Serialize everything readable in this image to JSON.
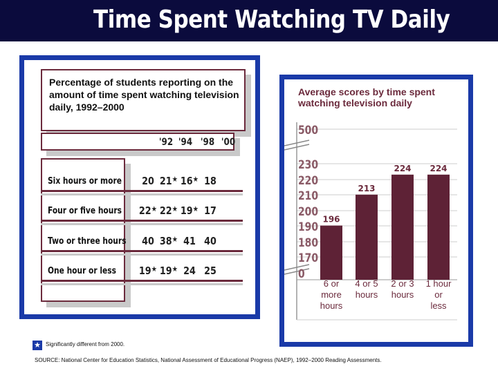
{
  "page": {
    "title": "Time Spent Watching TV Daily"
  },
  "table": {
    "caption": "Percentage of students reporting on the amount of time spent watching television daily, 1992–2000",
    "years": [
      "'92",
      "'94",
      "'98",
      "'00"
    ],
    "rows": [
      {
        "label": "Six hours or more",
        "values": [
          "20",
          "21",
          "16",
          "18"
        ],
        "significant": [
          false,
          true,
          true,
          false
        ]
      },
      {
        "label": "Four or five hours",
        "values": [
          "22",
          "22",
          "19",
          "17"
        ],
        "significant": [
          true,
          true,
          true,
          false
        ]
      },
      {
        "label": "Two or three hours",
        "values": [
          "40",
          "38",
          "41",
          "40"
        ],
        "significant": [
          false,
          true,
          false,
          false
        ]
      },
      {
        "label": "One hour or less",
        "values": [
          "19",
          "19",
          "24",
          "25"
        ],
        "significant": [
          true,
          true,
          false,
          false
        ]
      }
    ],
    "star_glyph": "★"
  },
  "chart_data": {
    "type": "bar",
    "title": "Average scores by time spent watching television daily",
    "categories": [
      "6 or more hours",
      "4 or 5 hours",
      "2 or 3 hours",
      "1 hour or less"
    ],
    "category_lines": [
      [
        "6 or",
        "more",
        "hours"
      ],
      [
        "4 or 5",
        "hours"
      ],
      [
        "2 or 3",
        "hours"
      ],
      [
        "1 hour",
        "or",
        "less"
      ]
    ],
    "values": [
      196,
      213,
      224,
      224
    ],
    "value_labels": [
      "196",
      "213",
      "224",
      "224"
    ],
    "y_ticks": [
      "500",
      "230",
      "220",
      "210",
      "200",
      "190",
      "180",
      "170",
      "0"
    ],
    "ylim": [
      170,
      230
    ],
    "axis_break": true,
    "bar_color": "#5e2236",
    "grid": true
  },
  "footer": {
    "legend_star": "★",
    "legend_text": "Significantly different from 2000.",
    "source": "SOURCE: National Center for Education Statistics, National Assessment of Educational Progress (NAEP), 1992–2000 Reading Assessments."
  }
}
